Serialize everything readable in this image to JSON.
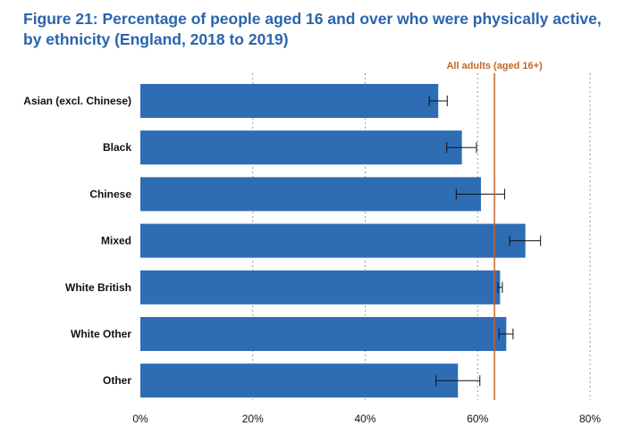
{
  "chart_data": {
    "type": "bar",
    "orientation": "horizontal",
    "title": "Figure 21: Percentage of people aged 16 and over who were physically active, by ethnicity (England, 2018 to 2019)",
    "categories": [
      "Asian (excl. Chinese)",
      "Black",
      "Chinese",
      "Mixed",
      "White British",
      "White Other",
      "Other"
    ],
    "values": [
      53.0,
      57.2,
      60.6,
      68.5,
      64.0,
      65.1,
      56.5
    ],
    "error_low": [
      51.4,
      54.5,
      56.2,
      65.7,
      63.6,
      63.8,
      52.6
    ],
    "error_high": [
      54.6,
      59.8,
      64.8,
      71.2,
      64.4,
      66.3,
      60.4
    ],
    "xlim": [
      0,
      80
    ],
    "x_ticks": [
      0,
      20,
      40,
      60,
      80
    ],
    "x_tick_labels": [
      "0%",
      "20%",
      "40%",
      "60%",
      "80%"
    ],
    "grid": "vertical dashed",
    "reference_line": {
      "label": "All adults (aged 16+)",
      "value": 63.0,
      "color": "#c0662b"
    },
    "bar_color": "#2e6db4",
    "title_color": "#2a64ae"
  }
}
